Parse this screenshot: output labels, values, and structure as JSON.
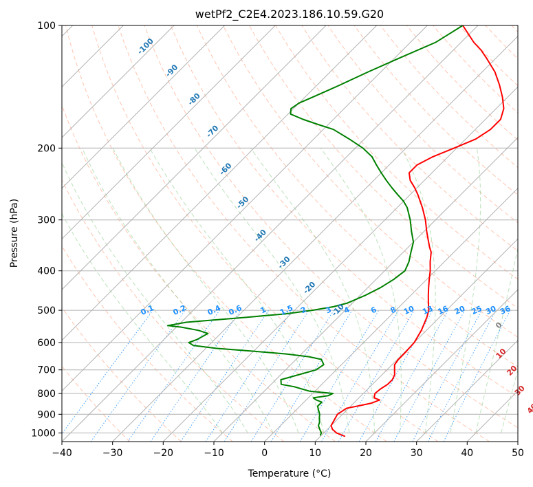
{
  "chart_data": {
    "type": "line",
    "title": "wetPf2_C2E4.2023.186.10.59.G20",
    "xlabel": "Temperature (°C)",
    "ylabel": "Pressure (hPa)",
    "xlim": [
      -40,
      50
    ],
    "ylim": [
      1050,
      100
    ],
    "y_scale": "log",
    "skew_degrees": 45,
    "x_ticks": [
      -40,
      -30,
      -20,
      -10,
      0,
      10,
      20,
      30,
      40,
      50
    ],
    "x_tick_labels": [
      "−40",
      "−30",
      "−20",
      "−10",
      "0",
      "10",
      "20",
      "30",
      "40",
      "50"
    ],
    "y_ticks": [
      1000,
      900,
      800,
      700,
      600,
      500,
      400,
      300,
      200,
      100
    ],
    "y_tick_labels": [
      "1000",
      "900",
      "800",
      "700",
      "600",
      "500",
      "400",
      "300",
      "200",
      "100"
    ],
    "grid": true,
    "colors": {
      "temperature": "#ff0000",
      "dewpoint": "#008000",
      "isotherm_labels": "#1f77b4",
      "mixing_ratio": "#1e90ff",
      "wet_bulb_labels": "#d62728",
      "dry_adiabat": "#ff7f50",
      "moist_adiabat": "#6abf69",
      "grid": "#b0b0b0"
    },
    "isotherm_labels": [
      -100,
      -90,
      -80,
      -70,
      -60,
      -50,
      -40,
      -30,
      -20,
      -10
    ],
    "mixing_ratio_labels": [
      "0.1",
      "0.2",
      "0.4",
      "0.6",
      "1",
      "1.5",
      "2",
      "3",
      "4",
      "6",
      "8",
      "10",
      "13",
      "16",
      "20",
      "25",
      "30",
      "36"
    ],
    "wet_bulb_labels": [
      "0",
      "10",
      "20",
      "30",
      "40"
    ],
    "series": [
      {
        "key": "temperature",
        "points": [
          [
            1020,
            14.9
          ],
          [
            1000,
            12.5
          ],
          [
            980,
            11
          ],
          [
            960,
            10
          ],
          [
            930,
            9.5
          ],
          [
            900,
            9
          ],
          [
            870,
            9.6
          ],
          [
            855,
            12
          ],
          [
            845,
            13.5
          ],
          [
            830,
            14.5
          ],
          [
            820,
            13
          ],
          [
            800,
            12.3
          ],
          [
            780,
            12.5
          ],
          [
            760,
            13
          ],
          [
            740,
            13
          ],
          [
            720,
            12.5
          ],
          [
            700,
            11.5
          ],
          [
            680,
            10.5
          ],
          [
            660,
            10.2
          ],
          [
            640,
            10.2
          ],
          [
            600,
            10
          ],
          [
            560,
            9
          ],
          [
            520,
            7.5
          ],
          [
            500,
            6.5
          ],
          [
            480,
            5
          ],
          [
            460,
            3.5
          ],
          [
            440,
            2
          ],
          [
            420,
            0.5
          ],
          [
            400,
            -1
          ],
          [
            380,
            -2.8
          ],
          [
            360,
            -4.5
          ],
          [
            350,
            -5.8
          ],
          [
            340,
            -7
          ],
          [
            320,
            -9.5
          ],
          [
            300,
            -12
          ],
          [
            280,
            -15
          ],
          [
            260,
            -18.5
          ],
          [
            250,
            -20.5
          ],
          [
            240,
            -22.8
          ],
          [
            230,
            -24.5
          ],
          [
            220,
            -24.5
          ],
          [
            210,
            -23
          ],
          [
            200,
            -20.5
          ],
          [
            190,
            -18
          ],
          [
            180,
            -17
          ],
          [
            170,
            -17
          ],
          [
            160,
            -18.5
          ],
          [
            150,
            -21
          ],
          [
            140,
            -24
          ],
          [
            130,
            -27.5
          ],
          [
            120,
            -32
          ],
          [
            115,
            -34.5
          ],
          [
            110,
            -37.5
          ],
          [
            100,
            -43
          ]
        ]
      },
      {
        "key": "dewpoint",
        "points": [
          [
            1015,
            9.8
          ],
          [
            1000,
            9.5
          ],
          [
            980,
            8.5
          ],
          [
            960,
            7.5
          ],
          [
            940,
            7
          ],
          [
            920,
            6.2
          ],
          [
            900,
            5.5
          ],
          [
            880,
            4.5
          ],
          [
            860,
            3.5
          ],
          [
            840,
            3.5
          ],
          [
            830,
            2
          ],
          [
            820,
            1
          ],
          [
            810,
            3.5
          ],
          [
            800,
            4
          ],
          [
            790,
            -1
          ],
          [
            780,
            -3
          ],
          [
            770,
            -5
          ],
          [
            760,
            -8
          ],
          [
            740,
            -9
          ],
          [
            720,
            -6.5
          ],
          [
            700,
            -4
          ],
          [
            680,
            -3.5
          ],
          [
            660,
            -5
          ],
          [
            650,
            -8
          ],
          [
            640,
            -13
          ],
          [
            630,
            -20
          ],
          [
            620,
            -28
          ],
          [
            610,
            -33
          ],
          [
            600,
            -34.5
          ],
          [
            590,
            -33.5
          ],
          [
            570,
            -32.5
          ],
          [
            560,
            -35
          ],
          [
            550,
            -39
          ],
          [
            545,
            -42
          ],
          [
            535,
            -39
          ],
          [
            520,
            -28
          ],
          [
            510,
            -21
          ],
          [
            500,
            -16.5
          ],
          [
            490,
            -13
          ],
          [
            480,
            -11
          ],
          [
            460,
            -9
          ],
          [
            440,
            -7.5
          ],
          [
            420,
            -6.5
          ],
          [
            400,
            -6
          ],
          [
            380,
            -7
          ],
          [
            360,
            -8.5
          ],
          [
            340,
            -10
          ],
          [
            320,
            -12.5
          ],
          [
            300,
            -15
          ],
          [
            280,
            -18
          ],
          [
            270,
            -20
          ],
          [
            260,
            -22.5
          ],
          [
            250,
            -25
          ],
          [
            240,
            -27.5
          ],
          [
            230,
            -30
          ],
          [
            220,
            -32.5
          ],
          [
            210,
            -35
          ],
          [
            200,
            -38.5
          ],
          [
            190,
            -43
          ],
          [
            180,
            -48
          ],
          [
            175,
            -52
          ],
          [
            170,
            -56
          ],
          [
            165,
            -59.5
          ],
          [
            160,
            -60.5
          ],
          [
            155,
            -60
          ],
          [
            150,
            -58.5
          ],
          [
            145,
            -57
          ],
          [
            140,
            -55.5
          ],
          [
            130,
            -52.5
          ],
          [
            120,
            -49
          ],
          [
            110,
            -45
          ],
          [
            100,
            -43
          ]
        ]
      }
    ]
  }
}
